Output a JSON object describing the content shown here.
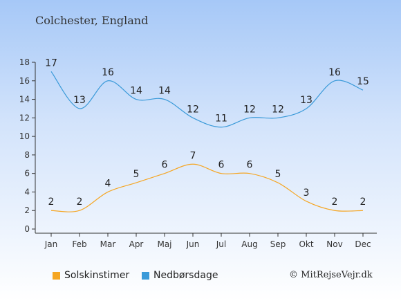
{
  "location": "Colchester, England",
  "copyright": "© MitRejseVejr.dk",
  "colors": {
    "sun": "#f5a623",
    "rain": "#3a9ad9",
    "axis": "#333333"
  },
  "chart_data": {
    "type": "line",
    "categories": [
      "Jan",
      "Feb",
      "Mar",
      "Apr",
      "Maj",
      "Jun",
      "Jul",
      "Aug",
      "Sep",
      "Okt",
      "Nov",
      "Dec"
    ],
    "yticks": [
      0,
      2,
      4,
      6,
      8,
      10,
      12,
      14,
      16,
      18
    ],
    "ylim": [
      0,
      18
    ],
    "series": [
      {
        "name": "Solskinstimer",
        "color": "#f5a623",
        "values": [
          2,
          2,
          4,
          5,
          6,
          7,
          6,
          6,
          5,
          3,
          2,
          2
        ]
      },
      {
        "name": "Nedbørsdage",
        "color": "#3a9ad9",
        "values": [
          17,
          13,
          16,
          14,
          14,
          12,
          11,
          12,
          12,
          13,
          16,
          15
        ]
      }
    ],
    "legend": "bottom-left",
    "grid": false
  }
}
